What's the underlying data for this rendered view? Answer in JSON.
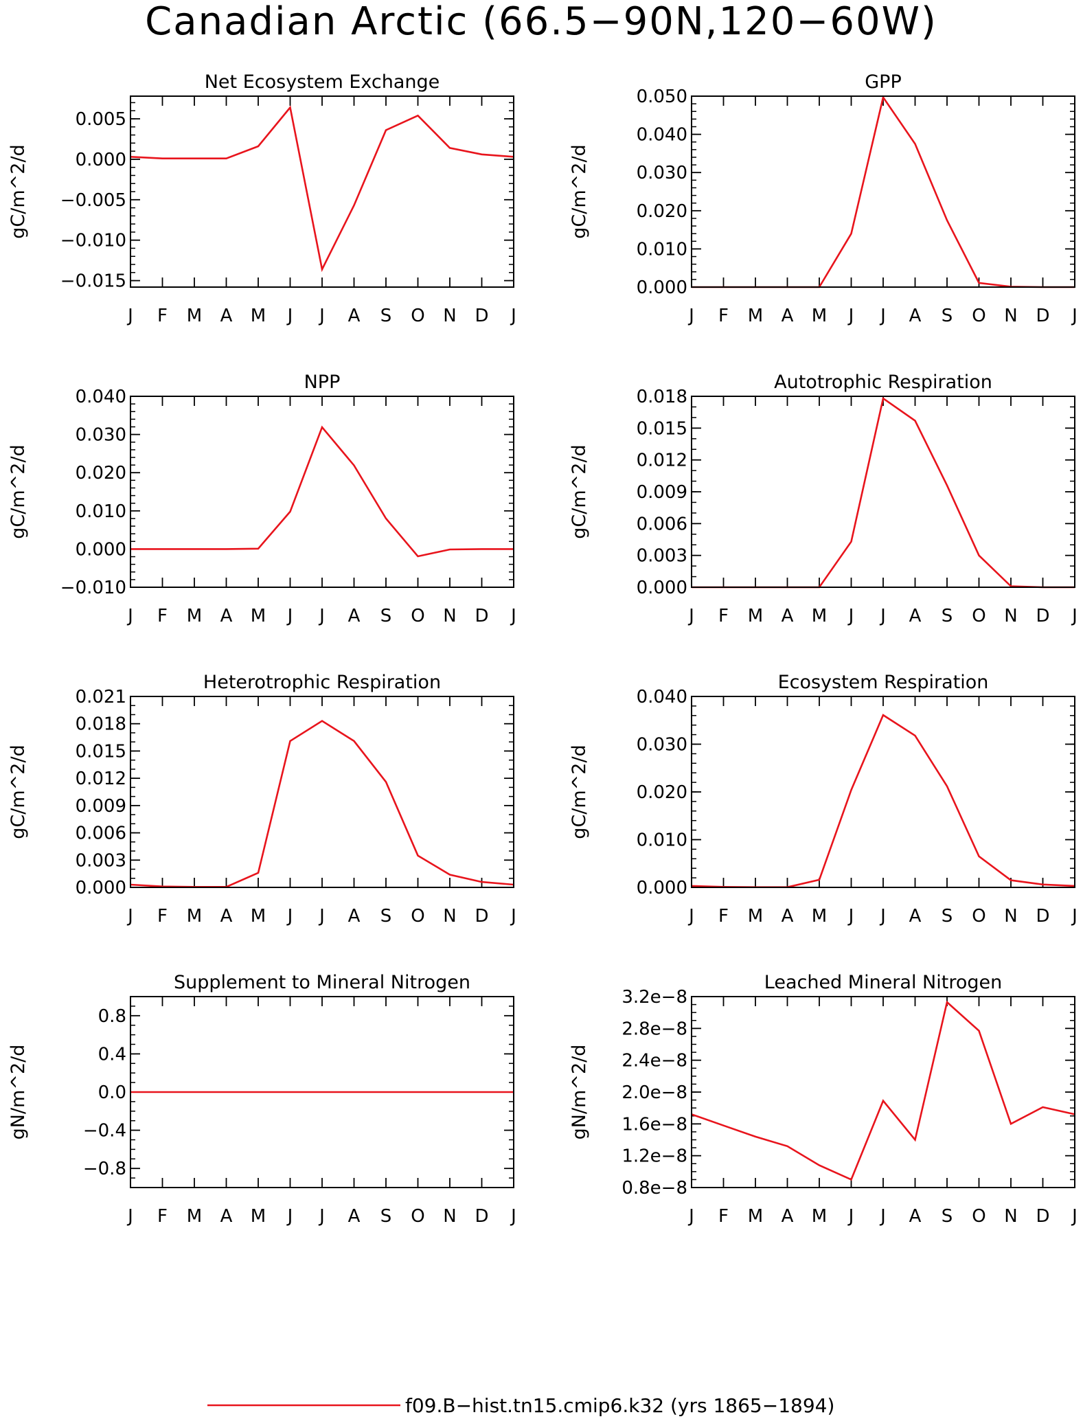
{
  "figure": {
    "title": "Canadian Arctic (66.5−90N,120−60W)",
    "line_color": "#e8141c",
    "legend": {
      "label": "f09.B−hist.tn15.cmip6.k32 (yrs 1865−1894)",
      "color": "#e8141c"
    }
  },
  "chart_data": [
    {
      "type": "line",
      "title": "Net Ecosystem Exchange",
      "ylabel": "gC/m^2/d",
      "categories": [
        "J",
        "F",
        "M",
        "A",
        "M",
        "J",
        "J",
        "A",
        "S",
        "O",
        "N",
        "D",
        "J"
      ],
      "ylim": [
        -0.0158,
        0.0078
      ],
      "yticks": [
        {
          "value": 0.005,
          "label": "0.005"
        },
        {
          "value": 0.0,
          "label": "0.000"
        },
        {
          "value": -0.005,
          "label": "−0.005"
        },
        {
          "value": -0.01,
          "label": "−0.010"
        },
        {
          "value": -0.015,
          "label": "−0.015"
        }
      ],
      "minor_step": 0.001,
      "series": [
        {
          "values": [
            0.0003,
            0.0001,
            0.0001,
            0.0001,
            0.0016,
            0.0064,
            -0.0136,
            -0.0057,
            0.0036,
            0.0054,
            0.0014,
            0.0006,
            0.0003
          ]
        }
      ]
    },
    {
      "type": "line",
      "title": "GPP",
      "ylabel": "gC/m^2/d",
      "categories": [
        "J",
        "F",
        "M",
        "A",
        "M",
        "J",
        "J",
        "A",
        "S",
        "O",
        "N",
        "D",
        "J"
      ],
      "ylim": [
        0.0,
        0.05
      ],
      "yticks": [
        {
          "value": 0.05,
          "label": "0.050"
        },
        {
          "value": 0.04,
          "label": "0.040"
        },
        {
          "value": 0.03,
          "label": "0.030"
        },
        {
          "value": 0.02,
          "label": "0.020"
        },
        {
          "value": 0.01,
          "label": "0.010"
        },
        {
          "value": 0.0,
          "label": "0.000"
        }
      ],
      "minor_step": 0.002,
      "series": [
        {
          "values": [
            0.0,
            0.0,
            0.0,
            0.0,
            0.0,
            0.014,
            0.0497,
            0.0375,
            0.0175,
            0.0011,
            0.0001,
            0.0,
            0.0
          ]
        }
      ]
    },
    {
      "type": "line",
      "title": "NPP",
      "ylabel": "gC/m^2/d",
      "categories": [
        "J",
        "F",
        "M",
        "A",
        "M",
        "J",
        "J",
        "A",
        "S",
        "O",
        "N",
        "D",
        "J"
      ],
      "ylim": [
        -0.01,
        0.04
      ],
      "yticks": [
        {
          "value": 0.04,
          "label": "0.040"
        },
        {
          "value": 0.03,
          "label": "0.030"
        },
        {
          "value": 0.02,
          "label": "0.020"
        },
        {
          "value": 0.01,
          "label": "0.010"
        },
        {
          "value": 0.0,
          "label": "0.000"
        },
        {
          "value": -0.01,
          "label": "−0.010"
        }
      ],
      "minor_step": 0.002,
      "series": [
        {
          "values": [
            0.0,
            0.0,
            0.0,
            0.0,
            0.0001,
            0.0098,
            0.0319,
            0.0219,
            0.008,
            -0.0019,
            -0.0001,
            0.0,
            0.0
          ]
        }
      ]
    },
    {
      "type": "line",
      "title": "Autotrophic Respiration",
      "ylabel": "gC/m^2/d",
      "categories": [
        "J",
        "F",
        "M",
        "A",
        "M",
        "J",
        "J",
        "A",
        "S",
        "O",
        "N",
        "D",
        "J"
      ],
      "ylim": [
        0.0,
        0.018
      ],
      "yticks": [
        {
          "value": 0.018,
          "label": "0.018"
        },
        {
          "value": 0.015,
          "label": "0.015"
        },
        {
          "value": 0.012,
          "label": "0.012"
        },
        {
          "value": 0.009,
          "label": "0.009"
        },
        {
          "value": 0.006,
          "label": "0.006"
        },
        {
          "value": 0.003,
          "label": "0.003"
        },
        {
          "value": 0.0,
          "label": "0.000"
        }
      ],
      "minor_step": 0.001,
      "series": [
        {
          "values": [
            0.0,
            0.0,
            0.0,
            0.0,
            0.0,
            0.0043,
            0.0178,
            0.0157,
            0.0096,
            0.003,
            0.0001,
            0.0,
            0.0
          ]
        }
      ]
    },
    {
      "type": "line",
      "title": "Heterotrophic Respiration",
      "ylabel": "gC/m^2/d",
      "categories": [
        "J",
        "F",
        "M",
        "A",
        "M",
        "J",
        "J",
        "A",
        "S",
        "O",
        "N",
        "D",
        "J"
      ],
      "ylim": [
        0.0,
        0.021
      ],
      "yticks": [
        {
          "value": 0.021,
          "label": "0.021"
        },
        {
          "value": 0.018,
          "label": "0.018"
        },
        {
          "value": 0.015,
          "label": "0.015"
        },
        {
          "value": 0.012,
          "label": "0.012"
        },
        {
          "value": 0.009,
          "label": "0.009"
        },
        {
          "value": 0.006,
          "label": "0.006"
        },
        {
          "value": 0.003,
          "label": "0.003"
        },
        {
          "value": 0.0,
          "label": "0.000"
        }
      ],
      "minor_step": 0.001,
      "series": [
        {
          "values": [
            0.0003,
            0.0001,
            5e-05,
            5e-05,
            0.0016,
            0.0161,
            0.0183,
            0.0161,
            0.0116,
            0.0035,
            0.0014,
            0.0006,
            0.0003
          ]
        }
      ]
    },
    {
      "type": "line",
      "title": "Ecosystem Respiration",
      "ylabel": "gC/m^2/d",
      "categories": [
        "J",
        "F",
        "M",
        "A",
        "M",
        "J",
        "J",
        "A",
        "S",
        "O",
        "N",
        "D",
        "J"
      ],
      "ylim": [
        0.0,
        0.04
      ],
      "yticks": [
        {
          "value": 0.04,
          "label": "0.040"
        },
        {
          "value": 0.03,
          "label": "0.030"
        },
        {
          "value": 0.02,
          "label": "0.020"
        },
        {
          "value": 0.01,
          "label": "0.010"
        },
        {
          "value": 0.0,
          "label": "0.000"
        }
      ],
      "minor_step": 0.002,
      "series": [
        {
          "values": [
            0.0003,
            0.0001,
            5e-05,
            5e-05,
            0.0016,
            0.0204,
            0.0361,
            0.0318,
            0.0212,
            0.0065,
            0.0015,
            0.0006,
            0.0003
          ]
        }
      ]
    },
    {
      "type": "line",
      "title": "Supplement to Mineral Nitrogen",
      "ylabel": "gN/m^2/d",
      "categories": [
        "J",
        "F",
        "M",
        "A",
        "M",
        "J",
        "J",
        "A",
        "S",
        "O",
        "N",
        "D",
        "J"
      ],
      "ylim": [
        -1.0,
        1.0
      ],
      "yticks": [
        {
          "value": 0.8,
          "label": "0.8"
        },
        {
          "value": 0.4,
          "label": "0.4"
        },
        {
          "value": 0.0,
          "label": "0.0"
        },
        {
          "value": -0.4,
          "label": "−0.4"
        },
        {
          "value": -0.8,
          "label": "−0.8"
        }
      ],
      "minor_step": 0.1,
      "series": [
        {
          "values": [
            0,
            0,
            0,
            0,
            0,
            0,
            0,
            0,
            0,
            0,
            0,
            0,
            0
          ]
        }
      ]
    },
    {
      "type": "line",
      "title": "Leached Mineral Nitrogen",
      "ylabel": "gN/m^2/d",
      "categories": [
        "J",
        "F",
        "M",
        "A",
        "M",
        "J",
        "J",
        "A",
        "S",
        "O",
        "N",
        "D",
        "J"
      ],
      "ylim": [
        8e-09,
        3.2e-08
      ],
      "yticks": [
        {
          "value": 3.2e-08,
          "label": "3.2e−8"
        },
        {
          "value": 2.8e-08,
          "label": "2.8e−8"
        },
        {
          "value": 2.4e-08,
          "label": "2.4e−8"
        },
        {
          "value": 2e-08,
          "label": "2.0e−8"
        },
        {
          "value": 1.6e-08,
          "label": "1.6e−8"
        },
        {
          "value": 1.2e-08,
          "label": "1.2e−8"
        },
        {
          "value": 8e-09,
          "label": "0.8e−8"
        }
      ],
      "minor_step": 1e-09,
      "series": [
        {
          "values": [
            1.72e-08,
            1.58e-08,
            1.44e-08,
            1.32e-08,
            1.08e-08,
            9e-09,
            1.89e-08,
            1.4e-08,
            3.13e-08,
            2.77e-08,
            1.6e-08,
            1.81e-08,
            1.72e-08
          ]
        }
      ]
    }
  ]
}
